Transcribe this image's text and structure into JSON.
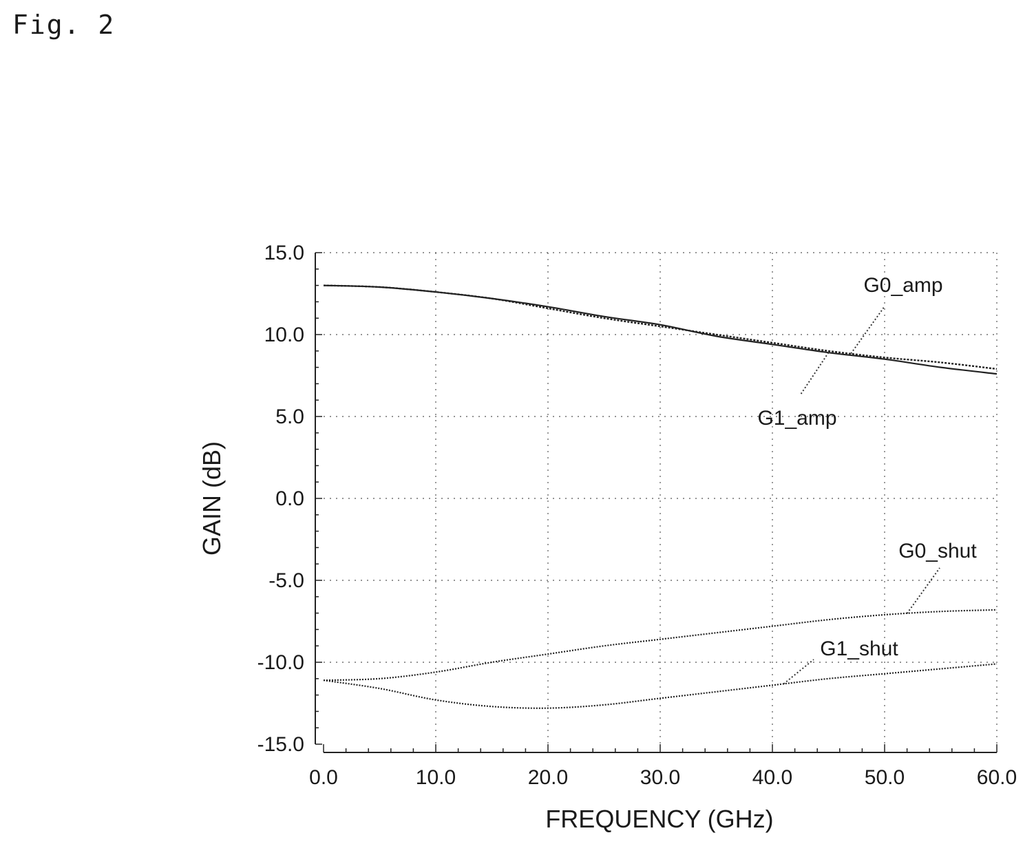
{
  "figure_label": "Fig. 2",
  "chart_data": {
    "type": "line",
    "xlabel": "FREQUENCY (GHz)",
    "ylabel": "GAIN (dB)",
    "xlim": [
      0,
      60
    ],
    "ylim": [
      -15,
      15
    ],
    "x_ticks": [
      "0.0",
      "10.0",
      "20.0",
      "30.0",
      "40.0",
      "50.0",
      "60.0"
    ],
    "y_ticks": [
      "15.0",
      "10.0",
      "5.0",
      "0.0",
      "-5.0",
      "-10.0",
      "-15.0"
    ],
    "grid": true,
    "x": [
      0,
      5,
      10,
      15,
      20,
      25,
      30,
      35,
      40,
      45,
      50,
      55,
      60
    ],
    "series": [
      {
        "name": "G0_amp",
        "values": [
          13.0,
          12.9,
          12.6,
          12.2,
          11.6,
          11.0,
          10.5,
          10.0,
          9.5,
          9.0,
          8.6,
          8.3,
          7.9
        ]
      },
      {
        "name": "G1_amp",
        "values": [
          13.0,
          12.9,
          12.6,
          12.2,
          11.7,
          11.1,
          10.6,
          9.9,
          9.4,
          8.9,
          8.5,
          8.0,
          7.6
        ]
      },
      {
        "name": "G0_shut",
        "values": [
          -11.1,
          -11.0,
          -10.6,
          -10.0,
          -9.5,
          -9.0,
          -8.6,
          -8.2,
          -7.8,
          -7.4,
          -7.1,
          -6.9,
          -6.8
        ]
      },
      {
        "name": "G1_shut",
        "values": [
          -11.1,
          -11.6,
          -12.3,
          -12.7,
          -12.8,
          -12.6,
          -12.2,
          -11.8,
          -11.4,
          -11.0,
          -10.7,
          -10.4,
          -10.1
        ]
      }
    ],
    "annotations": [
      {
        "series": "G0_amp",
        "text": "G0_amp",
        "at_x": 47
      },
      {
        "series": "G1_amp",
        "text": "G1_amp",
        "at_x": 45
      },
      {
        "series": "G0_shut",
        "text": "G0_shut",
        "at_x": 52
      },
      {
        "series": "G1_shut",
        "text": "G1_shut",
        "at_x": 41
      }
    ]
  }
}
